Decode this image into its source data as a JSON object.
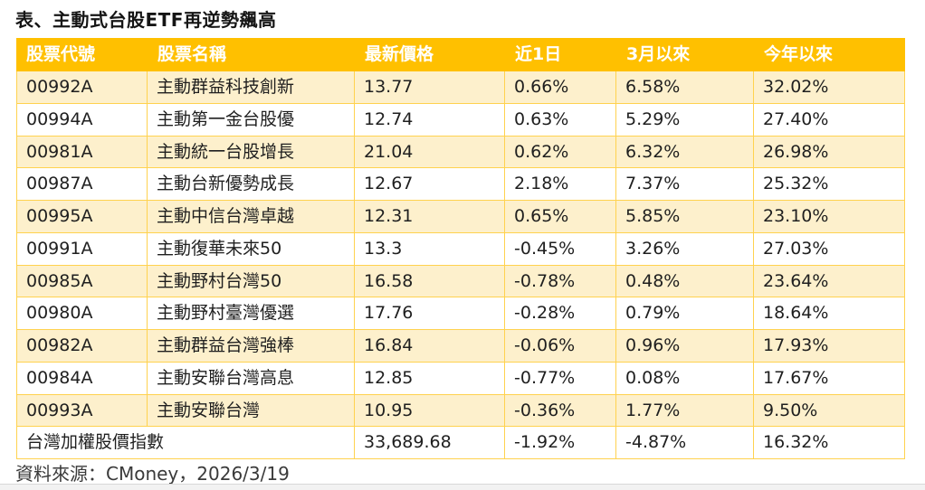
{
  "title": "表、主動式台股ETF再逆勢飆高",
  "colors": {
    "header_bg": "#FFC000",
    "header_text": "#FFFFFF",
    "row_bg": "#FFFFFF",
    "row_alt_bg": "#FDF0CC",
    "border": "#FFD24F",
    "text": "#1F1F1F"
  },
  "table": {
    "headers": [
      "股票代號",
      "股票名稱",
      "最新價格",
      "近1日",
      "3月以來",
      "今年以來"
    ],
    "rows": [
      {
        "code": "00992A",
        "name": "主動群益科技創新",
        "price": "13.77",
        "d1": "0.66%",
        "m3": "6.58%",
        "ytd": "32.02%"
      },
      {
        "code": "00994A",
        "name": "主動第一金台股優",
        "price": "12.74",
        "d1": "0.63%",
        "m3": "5.29%",
        "ytd": "27.40%"
      },
      {
        "code": "00981A",
        "name": "主動統一台股增長",
        "price": "21.04",
        "d1": "0.62%",
        "m3": "6.32%",
        "ytd": "26.98%"
      },
      {
        "code": "00987A",
        "name": "主動台新優勢成長",
        "price": "12.67",
        "d1": "2.18%",
        "m3": "7.37%",
        "ytd": "25.32%"
      },
      {
        "code": "00995A",
        "name": "主動中信台灣卓越",
        "price": "12.31",
        "d1": "0.65%",
        "m3": "5.85%",
        "ytd": "23.10%"
      },
      {
        "code": "00991A",
        "name": "主動復華未來50",
        "price": "13.3",
        "d1": "-0.45%",
        "m3": "3.26%",
        "ytd": "27.03%"
      },
      {
        "code": "00985A",
        "name": "主動野村台灣50",
        "price": "16.58",
        "d1": "-0.78%",
        "m3": "0.48%",
        "ytd": "23.64%"
      },
      {
        "code": "00980A",
        "name": "主動野村臺灣優選",
        "price": "17.76",
        "d1": "-0.28%",
        "m3": "0.79%",
        "ytd": "18.64%"
      },
      {
        "code": "00982A",
        "name": "主動群益台灣強棒",
        "price": "16.84",
        "d1": "-0.06%",
        "m3": "0.96%",
        "ytd": "17.93%"
      },
      {
        "code": "00984A",
        "name": "主動安聯台灣高息",
        "price": "12.85",
        "d1": "-0.77%",
        "m3": "0.08%",
        "ytd": "17.67%"
      },
      {
        "code": "00993A",
        "name": "主動安聯台灣",
        "price": "10.95",
        "d1": "-0.36%",
        "m3": "1.77%",
        "ytd": "9.50%"
      }
    ],
    "summary_row": {
      "name": "台灣加權股價指數",
      "price": "33,689.68",
      "d1": "-1.92%",
      "m3": "-4.87%",
      "ytd": "16.32%"
    }
  },
  "footer": {
    "source": "資料來源：CMoney，2026/3/19"
  }
}
